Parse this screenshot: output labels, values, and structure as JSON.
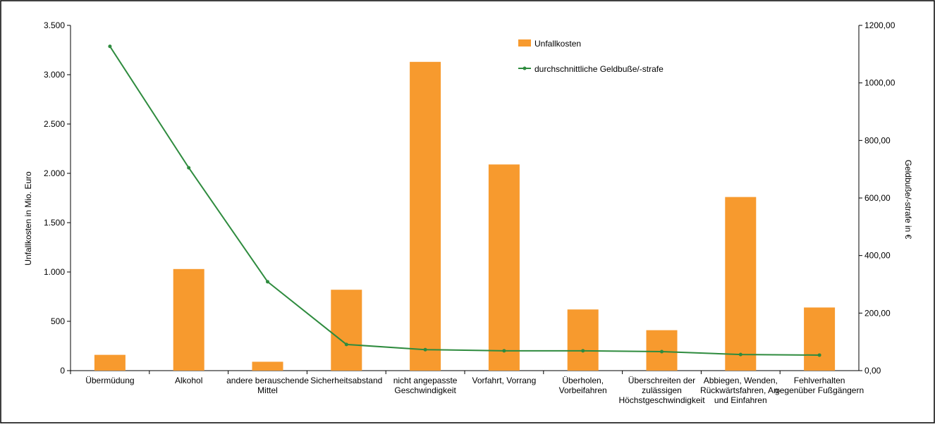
{
  "chart_data": {
    "type": "bar_line",
    "categories": [
      "Übermüdung",
      "Alkohol",
      "andere berauschende\nMittel",
      "Sicherheitsabstand",
      "nicht angepasste\nGeschwindigkeit",
      "Vorfahrt, Vorrang",
      "Überholen,\nVorbeifahren",
      "Überschreiten der\nzulässigen\nHöchstgeschwindigkeit",
      "Abbiegen, Wenden,\nRückwärtsfahren, An-\nund Einfahren",
      "Fehlverhalten\ngegenüber Fußgängern"
    ],
    "series": [
      {
        "name": "Unfallkosten",
        "type": "bar",
        "color": "#f79a2e",
        "values": [
          160,
          1030,
          90,
          820,
          3130,
          2090,
          620,
          410,
          1760,
          640
        ]
      },
      {
        "name": "durchschnittliche Geldbuße/-strafe",
        "type": "line",
        "axis": "y2",
        "color": "#2e8b3e",
        "values": [
          1127,
          705,
          309,
          91,
          73,
          69,
          69,
          66,
          56,
          54
        ]
      }
    ],
    "ylabel": "Unfallkosten in Mio. Euro",
    "y2label": "Geldbuße/-strafe in €",
    "ylim": [
      0,
      3500
    ],
    "yticks": [
      0,
      500,
      {
        "value": 1000,
        "label": "1.000"
      },
      {
        "value": 1500,
        "label": "1.500"
      },
      {
        "value": 2000,
        "label": "2.000"
      },
      {
        "value": 2500,
        "label": "2.500"
      },
      {
        "value": 3000,
        "label": "3.000"
      },
      {
        "value": 3500,
        "label": "3.500"
      }
    ],
    "y2lim": [
      0,
      1200
    ],
    "y2ticks": [
      {
        "value": 0,
        "label": "0,00"
      },
      {
        "value": 200,
        "label": "200,00"
      },
      {
        "value": 400,
        "label": "400,00"
      },
      {
        "value": 600,
        "label": "600,00"
      },
      {
        "value": 800,
        "label": "800,00"
      },
      {
        "value": 1000,
        "label": "1000,00"
      },
      {
        "value": 1200,
        "label": "1200,00"
      }
    ],
    "grid": false,
    "legend": "top"
  }
}
